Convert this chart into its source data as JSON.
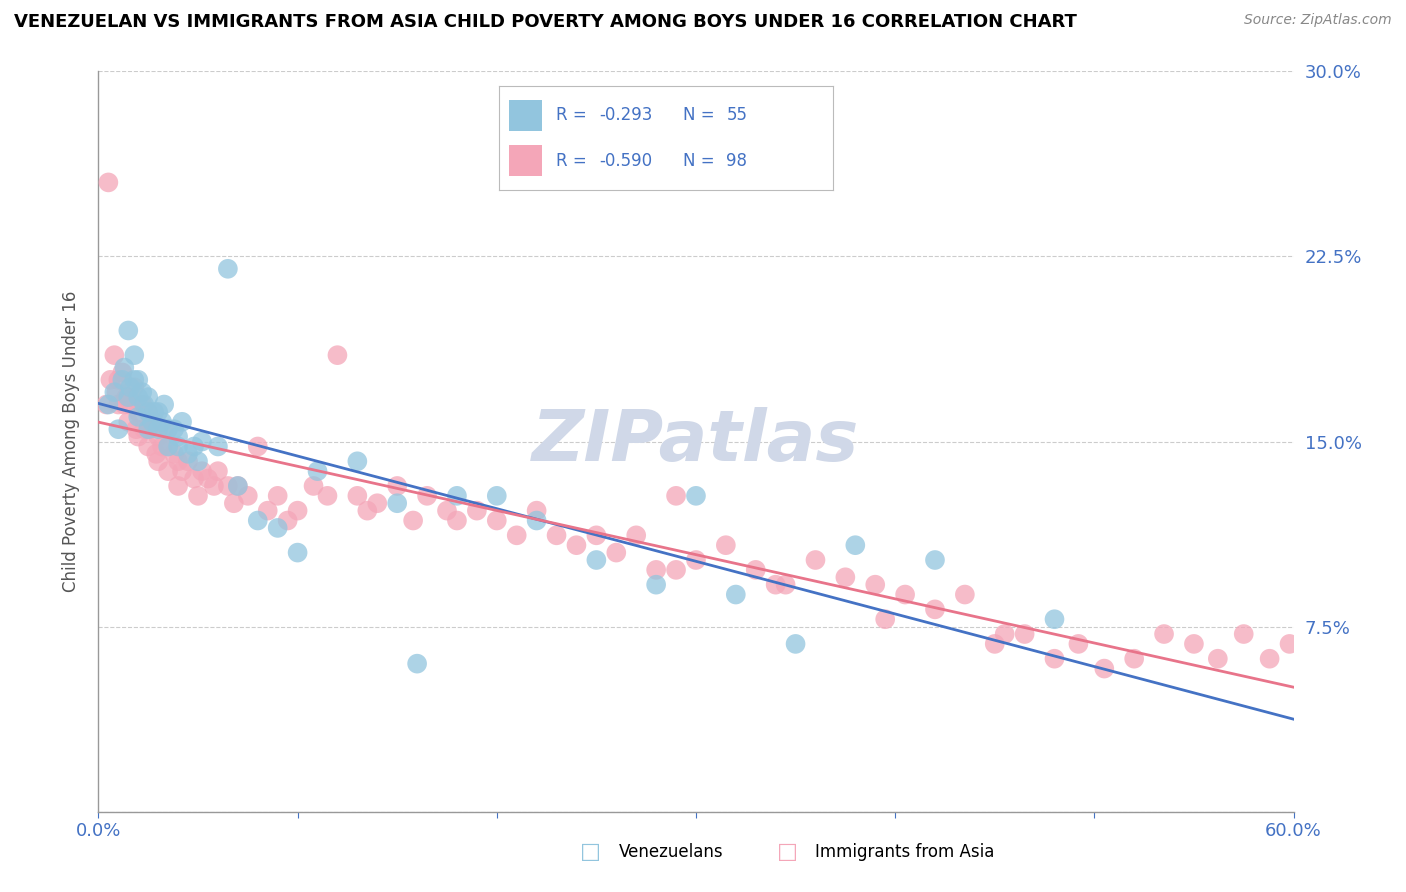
{
  "title": "VENEZUELAN VS IMMIGRANTS FROM ASIA CHILD POVERTY AMONG BOYS UNDER 16 CORRELATION CHART",
  "source": "Source: ZipAtlas.com",
  "ylabel": "Child Poverty Among Boys Under 16",
  "xlim": [
    0.0,
    0.6
  ],
  "ylim": [
    0.0,
    0.3
  ],
  "xticks": [
    0.0,
    0.1,
    0.2,
    0.3,
    0.4,
    0.5,
    0.6
  ],
  "yticks": [
    0.0,
    0.075,
    0.15,
    0.225,
    0.3
  ],
  "venezuelan_R": -0.293,
  "venezuelan_N": 55,
  "asia_R": -0.59,
  "asia_N": 98,
  "blue_color": "#92c5de",
  "pink_color": "#f4a6b8",
  "blue_line_color": "#4472c4",
  "pink_line_color": "#e8748a",
  "label_color": "#4472c4",
  "watermark_color": "#d0d8e8",
  "venezuelan_x": [
    0.005,
    0.008,
    0.01,
    0.012,
    0.013,
    0.015,
    0.015,
    0.016,
    0.018,
    0.018,
    0.02,
    0.02,
    0.02,
    0.022,
    0.023,
    0.025,
    0.025,
    0.025,
    0.027,
    0.028,
    0.03,
    0.03,
    0.032,
    0.033,
    0.035,
    0.035,
    0.038,
    0.04,
    0.04,
    0.042,
    0.045,
    0.048,
    0.05,
    0.052,
    0.06,
    0.065,
    0.07,
    0.08,
    0.09,
    0.1,
    0.11,
    0.13,
    0.15,
    0.16,
    0.18,
    0.2,
    0.22,
    0.25,
    0.28,
    0.3,
    0.32,
    0.35,
    0.38,
    0.42,
    0.48
  ],
  "venezuelan_y": [
    0.165,
    0.17,
    0.155,
    0.175,
    0.18,
    0.195,
    0.168,
    0.172,
    0.175,
    0.185,
    0.16,
    0.168,
    0.175,
    0.17,
    0.165,
    0.162,
    0.155,
    0.168,
    0.158,
    0.162,
    0.155,
    0.162,
    0.158,
    0.165,
    0.155,
    0.148,
    0.155,
    0.148,
    0.152,
    0.158,
    0.145,
    0.148,
    0.142,
    0.15,
    0.148,
    0.22,
    0.132,
    0.118,
    0.115,
    0.105,
    0.138,
    0.142,
    0.125,
    0.06,
    0.128,
    0.128,
    0.118,
    0.102,
    0.092,
    0.128,
    0.088,
    0.068,
    0.108,
    0.102,
    0.078
  ],
  "asia_x": [
    0.004,
    0.005,
    0.006,
    0.008,
    0.009,
    0.01,
    0.01,
    0.012,
    0.013,
    0.014,
    0.015,
    0.015,
    0.016,
    0.018,
    0.019,
    0.02,
    0.02,
    0.022,
    0.023,
    0.025,
    0.025,
    0.026,
    0.028,
    0.029,
    0.03,
    0.03,
    0.032,
    0.033,
    0.035,
    0.035,
    0.038,
    0.04,
    0.04,
    0.042,
    0.045,
    0.048,
    0.05,
    0.052,
    0.055,
    0.058,
    0.06,
    0.065,
    0.068,
    0.07,
    0.075,
    0.08,
    0.085,
    0.09,
    0.095,
    0.1,
    0.108,
    0.115,
    0.12,
    0.13,
    0.135,
    0.14,
    0.15,
    0.158,
    0.165,
    0.175,
    0.18,
    0.19,
    0.2,
    0.21,
    0.22,
    0.23,
    0.24,
    0.25,
    0.26,
    0.27,
    0.28,
    0.29,
    0.3,
    0.315,
    0.33,
    0.345,
    0.36,
    0.375,
    0.39,
    0.405,
    0.42,
    0.435,
    0.45,
    0.465,
    0.48,
    0.492,
    0.505,
    0.52,
    0.535,
    0.55,
    0.562,
    0.575,
    0.588,
    0.598,
    0.29,
    0.34,
    0.395,
    0.455
  ],
  "asia_y": [
    0.165,
    0.255,
    0.175,
    0.185,
    0.17,
    0.175,
    0.165,
    0.178,
    0.165,
    0.168,
    0.168,
    0.158,
    0.165,
    0.172,
    0.155,
    0.162,
    0.152,
    0.165,
    0.155,
    0.162,
    0.148,
    0.155,
    0.158,
    0.145,
    0.152,
    0.142,
    0.148,
    0.155,
    0.148,
    0.138,
    0.145,
    0.142,
    0.132,
    0.138,
    0.142,
    0.135,
    0.128,
    0.138,
    0.135,
    0.132,
    0.138,
    0.132,
    0.125,
    0.132,
    0.128,
    0.148,
    0.122,
    0.128,
    0.118,
    0.122,
    0.132,
    0.128,
    0.185,
    0.128,
    0.122,
    0.125,
    0.132,
    0.118,
    0.128,
    0.122,
    0.118,
    0.122,
    0.118,
    0.112,
    0.122,
    0.112,
    0.108,
    0.112,
    0.105,
    0.112,
    0.098,
    0.128,
    0.102,
    0.108,
    0.098,
    0.092,
    0.102,
    0.095,
    0.092,
    0.088,
    0.082,
    0.088,
    0.068,
    0.072,
    0.062,
    0.068,
    0.058,
    0.062,
    0.072,
    0.068,
    0.062,
    0.072,
    0.062,
    0.068,
    0.098,
    0.092,
    0.078,
    0.072
  ]
}
